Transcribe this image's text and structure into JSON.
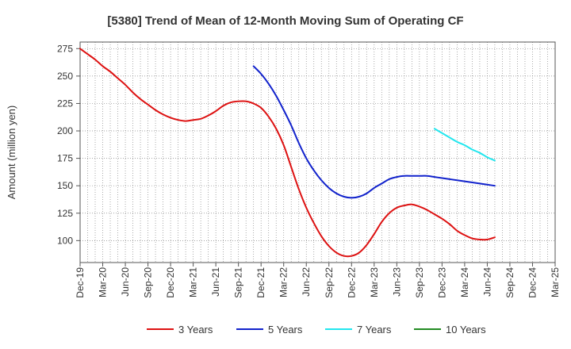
{
  "chart_data": {
    "type": "line",
    "title": "[5380]  Trend of Mean of 12-Month Moving Sum of Operating CF",
    "xlabel": "",
    "ylabel": "Amount (million yen)",
    "ylim": [
      80,
      281
    ],
    "yticks": [
      100,
      125,
      150,
      175,
      200,
      225,
      250,
      275
    ],
    "grid": true,
    "legend_position": "bottom",
    "x_tick_labels": [
      "Dec-19",
      "Mar-20",
      "Jun-20",
      "Sep-20",
      "Dec-20",
      "Mar-21",
      "Jun-21",
      "Sep-21",
      "Dec-21",
      "Mar-22",
      "Jun-22",
      "Sep-22",
      "Dec-22",
      "Mar-23",
      "Jun-23",
      "Sep-23",
      "Dec-23",
      "Mar-24",
      "Jun-24",
      "Sep-24",
      "Dec-24",
      "Mar-25"
    ],
    "series": [
      {
        "name": "3 Years",
        "color": "#dd1111",
        "x": [
          0,
          1,
          2,
          3,
          4,
          5,
          6,
          7,
          8,
          9,
          10,
          11,
          12,
          13,
          14,
          15,
          16,
          17,
          18,
          19,
          20,
          21,
          22,
          23,
          24,
          25,
          26,
          27,
          28,
          29,
          30,
          31,
          32,
          33,
          34,
          35,
          36,
          37,
          38,
          39,
          40,
          41,
          42,
          43,
          44,
          45,
          46,
          47,
          48,
          49,
          50,
          51,
          52,
          53,
          54,
          55,
          56,
          57,
          58,
          59,
          60
        ],
        "values": [
          275,
          270,
          265,
          259,
          254,
          248,
          242,
          235,
          229,
          224,
          219,
          215,
          212,
          210,
          209,
          210,
          211,
          214,
          218,
          223,
          226,
          227,
          227,
          225,
          221,
          213,
          202,
          187,
          167,
          147,
          130,
          116,
          104,
          95,
          89,
          86,
          86,
          89,
          96,
          106,
          117,
          125,
          130,
          132,
          133,
          131,
          128,
          124,
          120,
          115,
          109,
          105,
          102,
          101,
          101,
          103,
          null,
          null,
          null,
          null,
          null
        ]
      },
      {
        "name": "5 Years",
        "color": "#1122cc",
        "x": [
          23,
          24,
          25,
          26,
          27,
          28,
          29,
          30,
          31,
          32,
          33,
          34,
          35,
          36,
          37,
          38,
          39,
          40,
          41,
          42,
          43,
          44,
          45,
          46,
          47,
          48,
          49,
          50,
          51,
          52,
          53,
          54,
          55
        ],
        "values": [
          259,
          252,
          243,
          232,
          219,
          205,
          189,
          175,
          164,
          155,
          148,
          143,
          140,
          139,
          140,
          143,
          148,
          152,
          156,
          158,
          159,
          159,
          159,
          159,
          158,
          157,
          156,
          155,
          154,
          153,
          152,
          151,
          150
        ]
      },
      {
        "name": "7 Years",
        "color": "#22e6ee",
        "x": [
          47,
          48,
          49,
          50,
          51,
          52,
          53,
          54,
          55
        ],
        "values": [
          202,
          198,
          194,
          190,
          187,
          183,
          180,
          176,
          173
        ]
      },
      {
        "name": "10 Years",
        "color": "#228b22",
        "x": [],
        "values": []
      }
    ]
  }
}
